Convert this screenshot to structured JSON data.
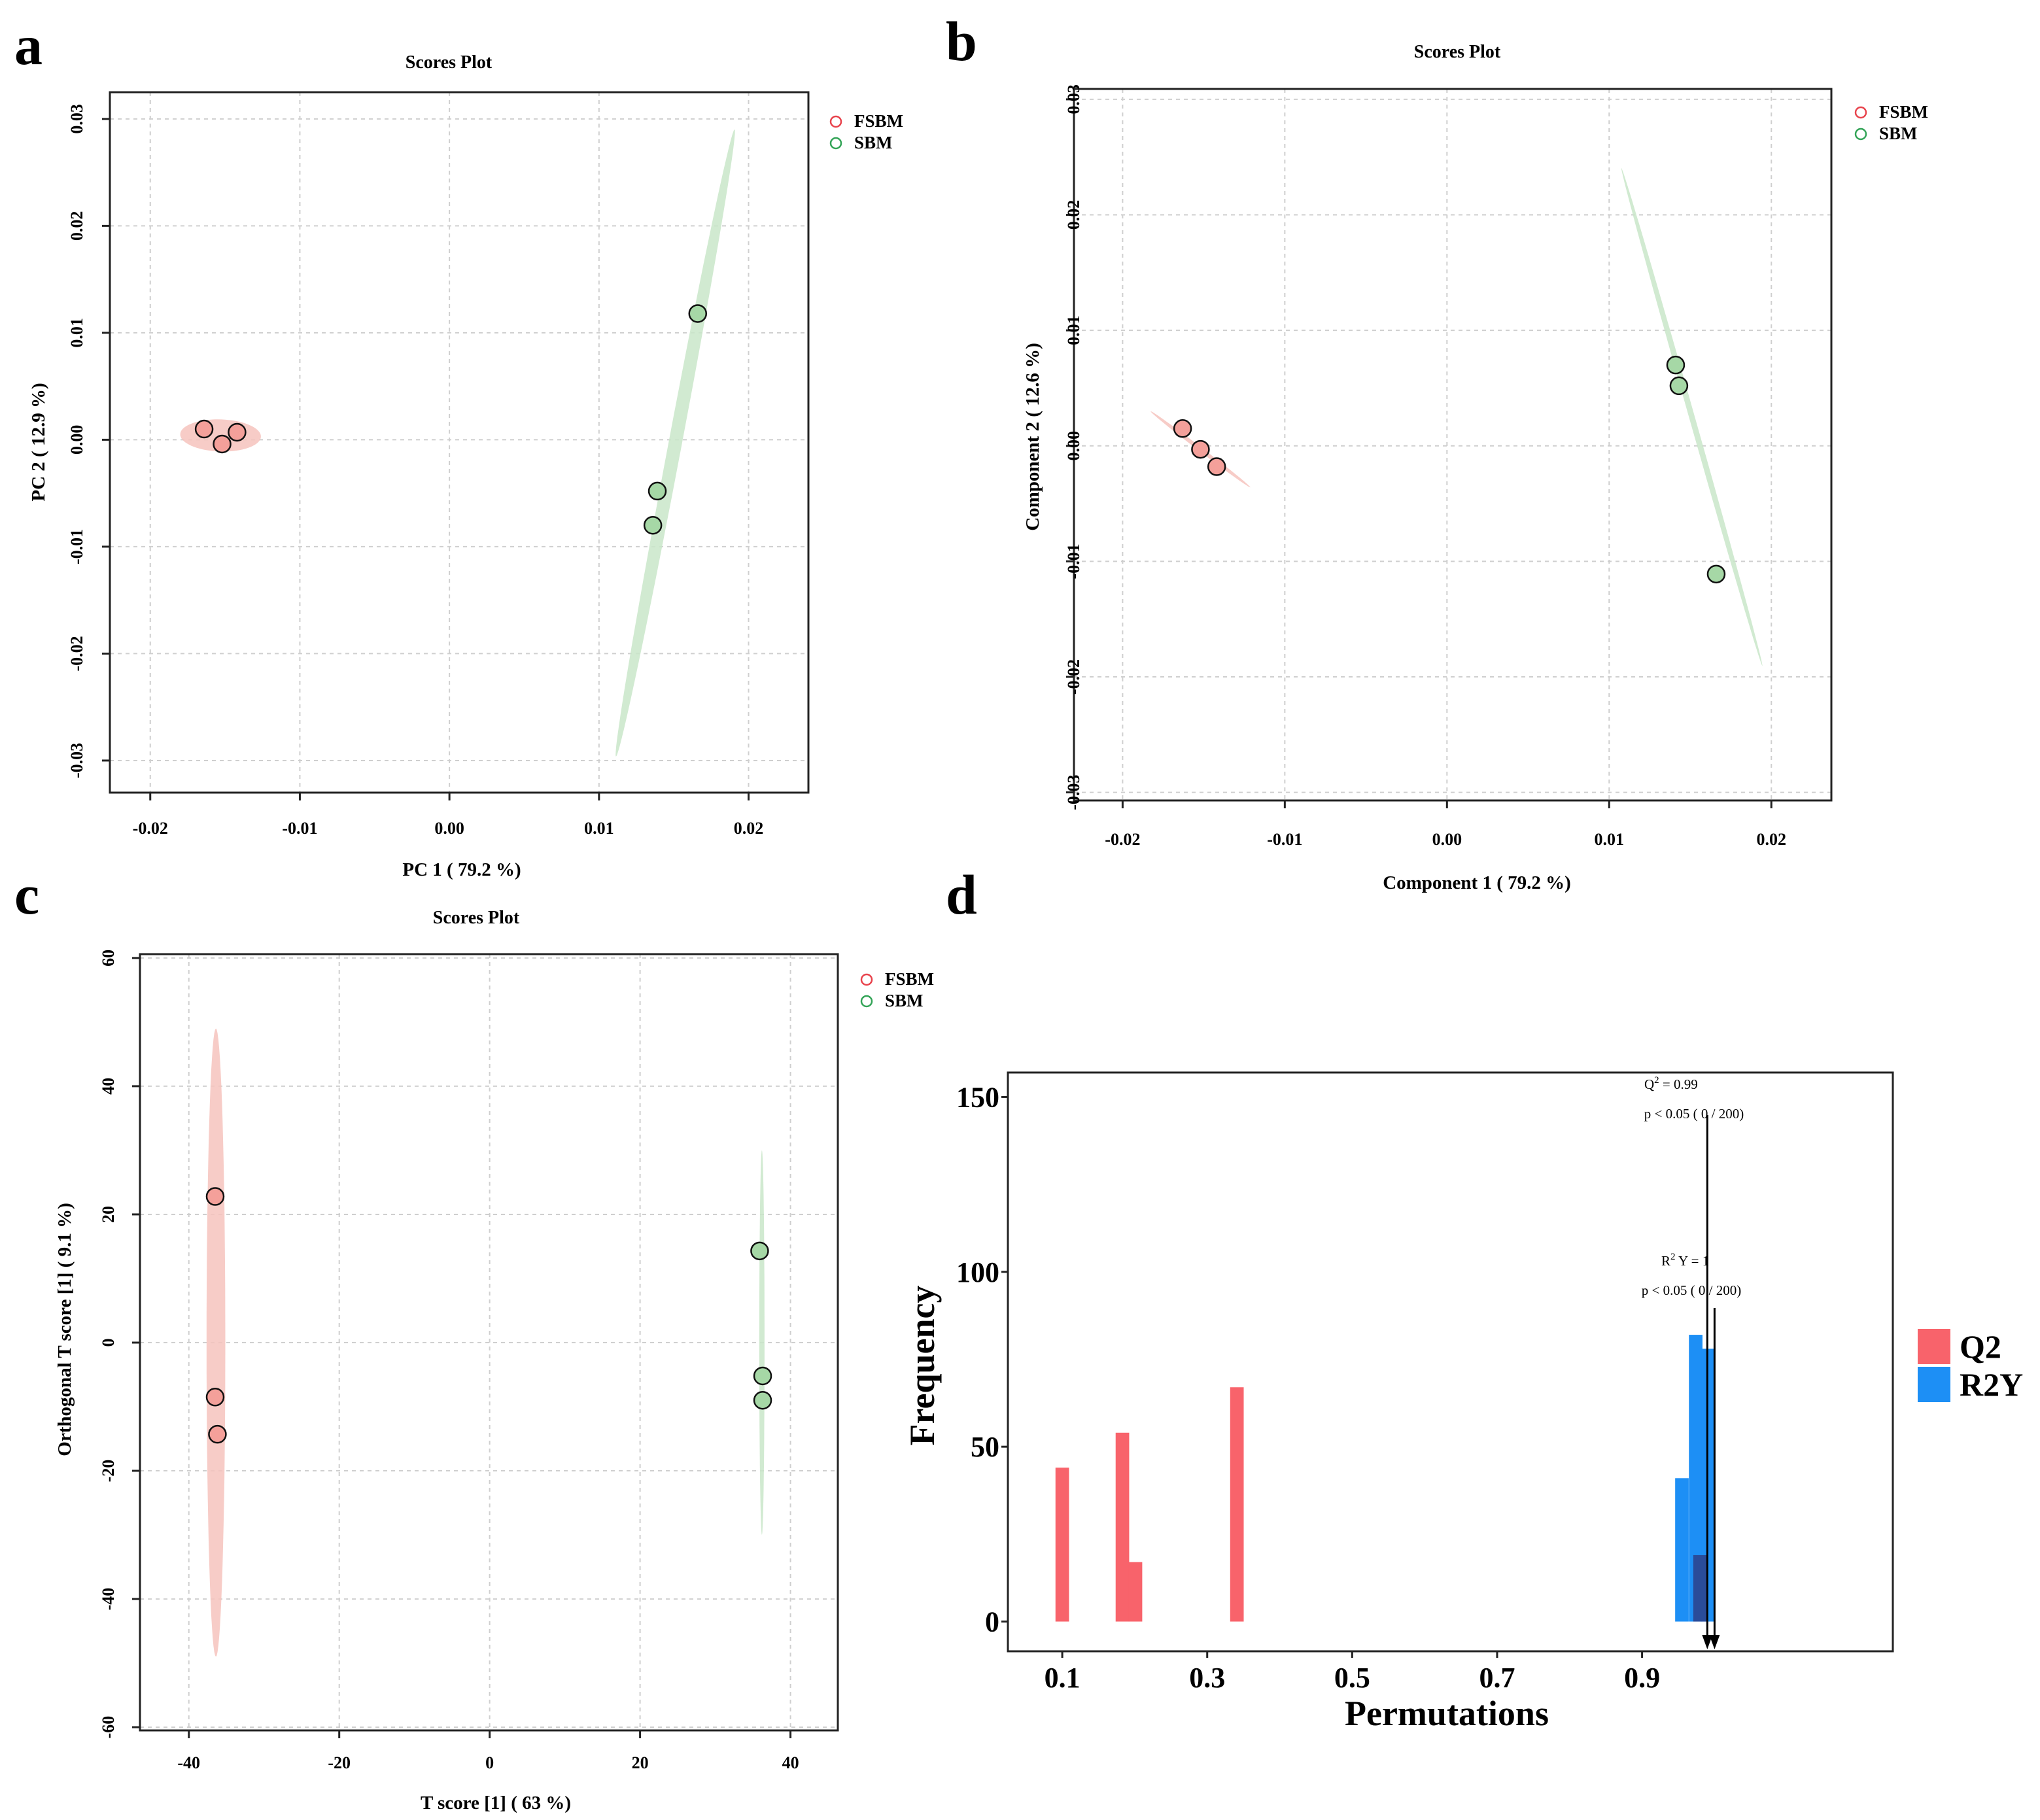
{
  "panel_letters": {
    "a": "a",
    "b": "b",
    "c": "c",
    "d": "d"
  },
  "colors": {
    "fsbm_fill": "#f4a09a",
    "fsbm_ellipse": "#f6c3bd",
    "fsbm_legend": "#e8434c",
    "sbm_fill": "#a6d8a6",
    "sbm_ellipse": "#c9e6c9",
    "sbm_legend": "#33a457",
    "q2": "#f8636b",
    "r2y": "#1d8ff5",
    "overlap": "#2a4c9a"
  },
  "chart_data": [
    {
      "panel": "a",
      "type": "scatter",
      "title": "Scores Plot",
      "xlabel": "PC 1 ( 79.2 %)",
      "ylabel": "PC 2 ( 12.9 %)",
      "xlim": [
        -0.0227,
        0.024
      ],
      "ylim": [
        -0.033,
        0.0325
      ],
      "xticks": [
        -0.02,
        -0.01,
        0.0,
        0.01,
        0.02
      ],
      "xtick_labels": [
        "-0.02",
        "-0.01",
        "0.00",
        "0.01",
        "0.02"
      ],
      "yticks": [
        -0.03,
        -0.02,
        -0.01,
        0.0,
        0.01,
        0.02,
        0.03
      ],
      "ytick_labels": [
        "-0.03",
        "-0.02",
        "-0.01",
        "0.00",
        "0.01",
        "0.02",
        "0.03"
      ],
      "legend": [
        "FSBM",
        "SBM"
      ],
      "series": [
        {
          "name": "FSBM",
          "x": [
            -0.0164,
            -0.0152,
            -0.0142
          ],
          "y": [
            0.001,
            -0.0004,
            0.0007
          ]
        },
        {
          "name": "SBM",
          "x": [
            0.0136,
            0.0139,
            0.0166
          ],
          "y": [
            -0.008,
            -0.0048,
            0.0118
          ]
        }
      ],
      "ellipses": [
        {
          "name": "FSBM",
          "cx": -0.0153,
          "cy": 0.0004,
          "major": 0.0027,
          "minor": 0.0015,
          "angle_deg": -3
        },
        {
          "name": "SBM",
          "cx": 0.0151,
          "cy": -0.0003,
          "major": 0.0296,
          "minor": 0.00045,
          "angle_deg": 82.3
        }
      ]
    },
    {
      "panel": "b",
      "type": "scatter",
      "title": "Scores Plot",
      "xlabel": "Component 1 ( 79.2 %)",
      "ylabel": "Component 2 ( 12.6 %)",
      "xlim": [
        -0.023,
        0.0237
      ],
      "ylim": [
        -0.0307,
        0.0309
      ],
      "xticks": [
        -0.02,
        -0.01,
        0.0,
        0.01,
        0.02
      ],
      "xtick_labels": [
        "-0.02",
        "-0.01",
        "0.00",
        "0.01",
        "0.02"
      ],
      "yticks": [
        -0.03,
        -0.02,
        -0.01,
        0.0,
        0.01,
        0.02,
        0.03
      ],
      "ytick_labels": [
        "-0.03",
        "-0.02",
        "-0.01",
        "0.00",
        "0.01",
        "0.02",
        "0.03"
      ],
      "legend": [
        "FSBM",
        "SBM"
      ],
      "series": [
        {
          "name": "FSBM",
          "x": [
            -0.0163,
            -0.0152,
            -0.0142
          ],
          "y": [
            0.0015,
            -0.0003,
            -0.0018
          ]
        },
        {
          "name": "SBM",
          "x": [
            0.0141,
            0.0143,
            0.0166
          ],
          "y": [
            0.007,
            0.0052,
            -0.0111
          ]
        }
      ],
      "ellipses": [
        {
          "name": "FSBM",
          "cx": -0.0152,
          "cy": -0.0003,
          "major": 0.0045,
          "minor": 0.00015,
          "angle_deg": -47
        },
        {
          "name": "SBM",
          "cx": 0.0151,
          "cy": 0.0025,
          "major": 0.022,
          "minor": 0.00018,
          "angle_deg": -78.6
        }
      ]
    },
    {
      "panel": "c",
      "type": "scatter",
      "title": "Scores Plot",
      "xlabel": "T score [1] ( 63 %)",
      "ylabel": "Orthogonal T score [1] ( 9.1 %)",
      "xlim": [
        -46.5,
        46.3
      ],
      "ylim": [
        -60.5,
        60.6
      ],
      "xticks": [
        -40,
        -20,
        0,
        20,
        40
      ],
      "xtick_labels": [
        "-40",
        "-20",
        "0",
        "20",
        "40"
      ],
      "yticks": [
        -60,
        -40,
        -20,
        0,
        20,
        40,
        60
      ],
      "ytick_labels": [
        "-60",
        "-40",
        "-20",
        "0",
        "20",
        "40",
        "60"
      ],
      "legend": [
        "FSBM",
        "SBM"
      ],
      "series": [
        {
          "name": "FSBM",
          "x": [
            -36.5,
            -36.5,
            -36.2
          ],
          "y": [
            22.8,
            -8.5,
            -14.3
          ]
        },
        {
          "name": "SBM",
          "x": [
            35.9,
            36.3,
            36.3
          ],
          "y": [
            14.3,
            -5.2,
            -9.0
          ]
        }
      ],
      "ellipses": [
        {
          "name": "FSBM",
          "cx": -36.4,
          "cy": 0.0,
          "major": 49.0,
          "minor": 1.25,
          "angle_deg": 90
        },
        {
          "name": "SBM",
          "cx": 36.2,
          "cy": 0.0,
          "major": 30.0,
          "minor": 0.35,
          "angle_deg": 90
        }
      ]
    },
    {
      "panel": "d",
      "type": "bar",
      "title": "",
      "xlabel": "Permutations",
      "ylabel": "Frequency",
      "xlim": [
        0.025,
        1.246
      ],
      "ylim": [
        -8.5,
        157
      ],
      "xticks": [
        0.1,
        0.3,
        0.5,
        0.7,
        0.9
      ],
      "xtick_labels": [
        "0.1",
        "0.3",
        "0.5",
        "0.7",
        "0.9"
      ],
      "yticks": [
        0,
        50,
        100,
        150
      ],
      "ytick_labels": [
        "0",
        "50",
        "100",
        "150"
      ],
      "bin_width": 0.0187,
      "series": [
        {
          "name": "Q2",
          "bins": [
            {
              "x": 0.1,
              "value": 44
            },
            {
              "x": 0.183,
              "value": 54
            },
            {
              "x": 0.201,
              "value": 17
            },
            {
              "x": 0.341,
              "value": 67
            },
            {
              "x": 0.98,
              "value": 19
            }
          ]
        },
        {
          "name": "R2Y",
          "bins": [
            {
              "x": 0.955,
              "value": 41
            },
            {
              "x": 0.974,
              "value": 82
            },
            {
              "x": 0.991,
              "value": 78
            }
          ]
        }
      ],
      "legend": [
        "Q2",
        "R2Y"
      ],
      "annotations": {
        "q2_label": "Q",
        "q2_sup": "2",
        "q2_value": "=  0.99",
        "q2_p": "p < 0.05 (  0 / 200)",
        "r2y_label_a": "R",
        "r2y_sup": "2",
        "r2y_label_b": "Y =  1",
        "r2y_p": "p < 0.05 (  0 / 200)",
        "q2_observed": 0.99,
        "r2y_observed": 1.0
      }
    }
  ]
}
